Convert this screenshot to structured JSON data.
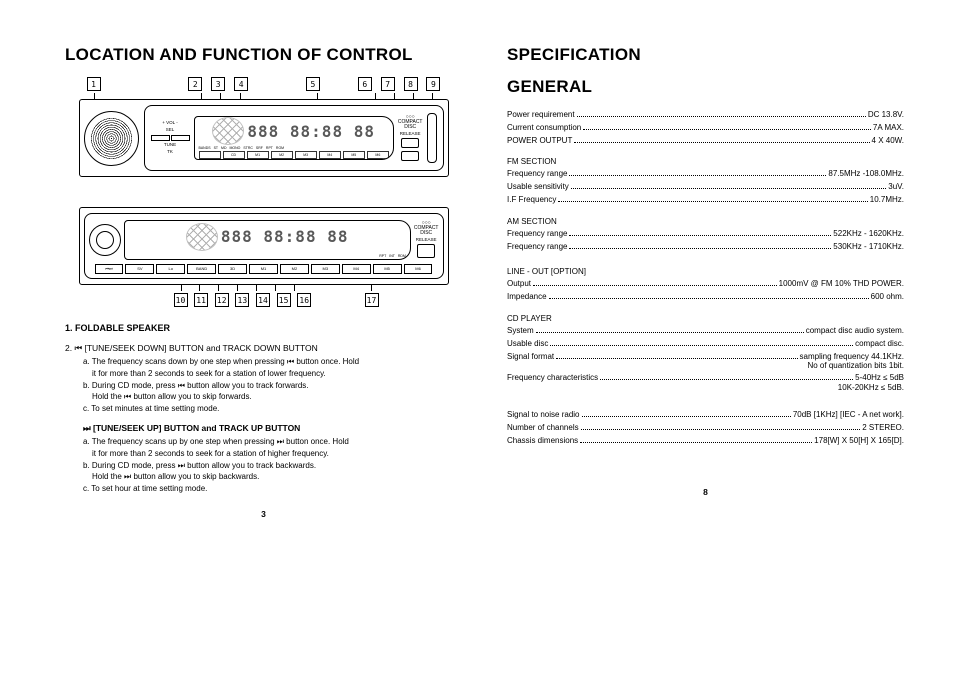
{
  "left": {
    "title": "LOCATION AND FUNCTION OF CONTROL",
    "callouts_top": [
      "1",
      "2",
      "3",
      "4",
      "5",
      "6",
      "7",
      "8",
      "9"
    ],
    "callouts_bot": [
      "10",
      "11",
      "12",
      "13",
      "14",
      "15",
      "16",
      "17"
    ],
    "display_segments": "888 88:88 88",
    "display_ind_top": [
      "BANDS",
      "ST",
      "MD",
      "MONO",
      "STRC",
      "SRF",
      "RPT",
      "ROM"
    ],
    "display_ind_bot_top": [
      "RPT",
      "INT",
      "RDM"
    ],
    "main_btns1": [
      "MU",
      "SV",
      "Lo",
      "BAND",
      "3D",
      "M1",
      "M2",
      "M3",
      "M4",
      "M5",
      "M6"
    ],
    "main_btns2": [
      "SV",
      "Lo",
      "BAND",
      "3D",
      "M1",
      "M2",
      "M3",
      "M4",
      "M5",
      "M6"
    ],
    "right_side_btns": [
      "MU",
      "ME"
    ],
    "tune_lbls": [
      "TUNE",
      "TK"
    ],
    "vol_lbl": "VOL",
    "sel_lbl": "SEL",
    "cd_lbl": "COMPACT\nDISC",
    "release_lbl": "RELEASE",
    "cd_lbl2": "CD",
    "item1": "1. FOLDABLE SPEAKER",
    "item2_head": "2.  ⏮  [TUNE/SEEK DOWN] BUTTON and TRACK DOWN BUTTON",
    "item2_a": "a. The frequency scans down by one step when pressing  ⏮ button once. Hold",
    "item2_a2": "it for more than 2 seconds to seek for a station of lower frequency.",
    "item2_b": "b. During CD mode, press ⏮  button allow you to track forwards.",
    "item2_b2": "Hold the  ⏮  button allow you to skip forwards.",
    "item2_c": "c. To set minutes at time setting mode.",
    "item3_head": "⏭ [TUNE/SEEK UP] BUTTON and TRACK UP BUTTON",
    "item3_a": "a. The frequency scans up by one step when pressing  ⏭ button once. Hold",
    "item3_a2": "it for more than 2 seconds to seek for a station of higher frequency.",
    "item3_b": "b. During CD mode, press  ⏭ button allow you to track backwards.",
    "item3_b2": "Hold the  ⏭ button allow you to skip backwards.",
    "item3_c": "c. To set hour at time setting mode.",
    "page": "3"
  },
  "right": {
    "title1": "SPECIFICATION",
    "title2": "GENERAL",
    "rows1": [
      {
        "l": "Power requirement",
        "v": "DC 13.8V."
      },
      {
        "l": "Current consumption",
        "v": "7A MAX."
      },
      {
        "l": "POWER OUTPUT",
        "v": "4 X 40W."
      }
    ],
    "fm_hdr": "FM SECTION",
    "rows_fm": [
      {
        "l": "Frequency range",
        "v": "87.5MHz -108.0MHz."
      },
      {
        "l": "Usable sensitivity",
        "v": "3uV."
      },
      {
        "l": "I.F Frequency",
        "v": "10.7MHz."
      }
    ],
    "am_hdr": "AM SECTION",
    "rows_am": [
      {
        "l": "Frequency range",
        "v": "522KHz - 1620KHz."
      },
      {
        "l": "Frequency range",
        "v": "530KHz - 1710KHz."
      }
    ],
    "line_hdr": "LINE - OUT [OPTION]",
    "rows_line": [
      {
        "l": "Output",
        "v": "1000mV @ FM 10% THD POWER."
      },
      {
        "l": "Impedance",
        "v": "600 ohm."
      }
    ],
    "cd_hdr": "CD PLAYER",
    "rows_cd": [
      {
        "l": "System",
        "v": "compact disc audio system."
      },
      {
        "l": "Usable disc",
        "v": "compact disc."
      },
      {
        "l": "Signal format",
        "v": "sampling frequency 44.1KHz."
      }
    ],
    "cd_note": "No of quantization bits 1bit.",
    "rows_cd2": [
      {
        "l": "Frequency characteristics",
        "v": "5-40Hz ≤ 5dB"
      }
    ],
    "cd_note2": "10K-20KHz ≤ 5dB.",
    "rows_bottom": [
      {
        "l": "Signal to noise radio",
        "v": "70dB [1KHz] [IEC - A net work]."
      },
      {
        "l": "Number of channels",
        "v": "2 STEREO."
      },
      {
        "l": "Chassis dimensions",
        "v": "178[W] X 50[H] X 165[D]."
      }
    ],
    "page": "8"
  }
}
